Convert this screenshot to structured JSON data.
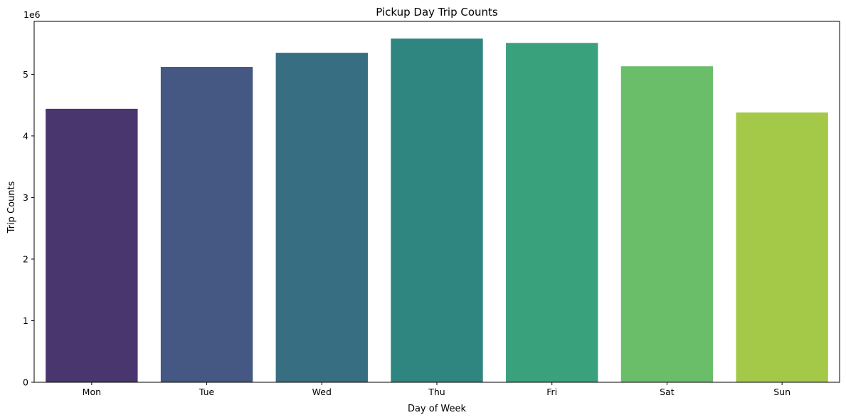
{
  "chart_data": {
    "type": "bar",
    "title": "Pickup Day Trip Counts",
    "xlabel": "Day of Week",
    "ylabel": "Trip Counts",
    "y_multiplier_label": "1e6",
    "categories": [
      "Mon",
      "Tue",
      "Wed",
      "Thu",
      "Fri",
      "Sat",
      "Sun"
    ],
    "values": [
      4440000,
      5120000,
      5350000,
      5580000,
      5510000,
      5130000,
      4380000
    ],
    "colors": [
      "#4a366f",
      "#455883",
      "#386e82",
      "#2f8580",
      "#39a17b",
      "#6abe6a",
      "#a4c848"
    ],
    "yticks": [
      0,
      1,
      2,
      3,
      4,
      5
    ],
    "y_scale": 1000000,
    "ylim": [
      0,
      5860000
    ],
    "grid": false,
    "legend": "none"
  }
}
